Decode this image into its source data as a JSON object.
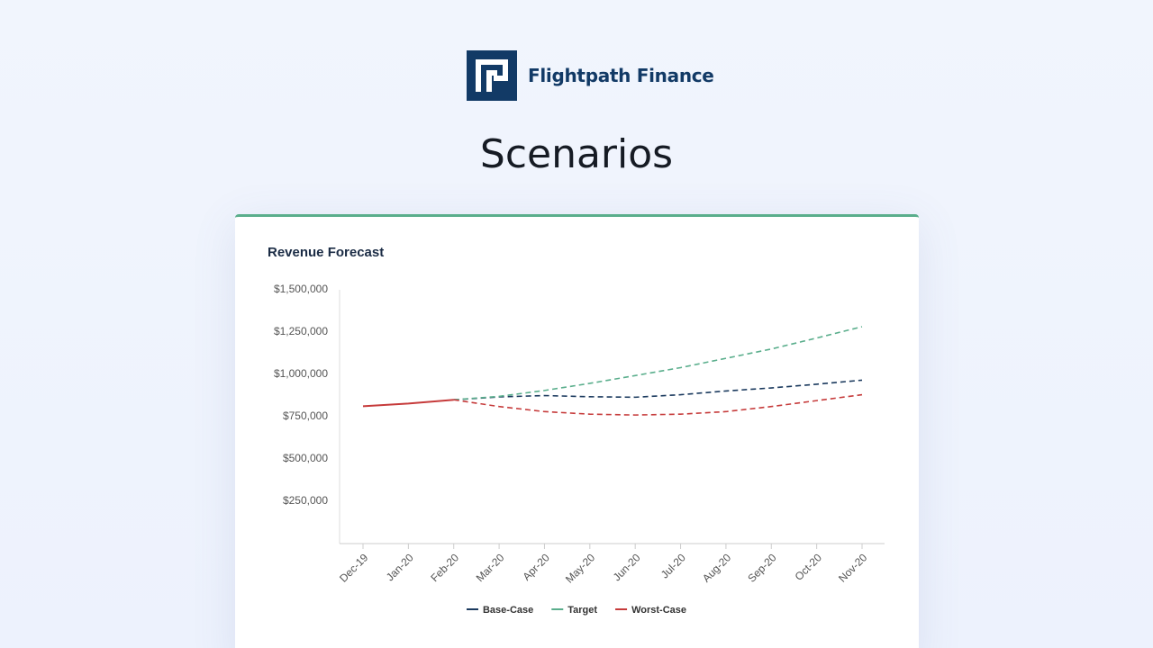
{
  "header": {
    "brand": "Flightpath Finance",
    "title": "Scenarios"
  },
  "chart_data": {
    "type": "line",
    "title": "Revenue Forecast",
    "categories": [
      "Dec-19",
      "Jan-20",
      "Feb-20",
      "Mar-20",
      "Apr-20",
      "May-20",
      "Jun-20",
      "Jul-20",
      "Aug-20",
      "Sep-20",
      "Oct-20",
      "Nov-20"
    ],
    "forecast_start": "Feb-20",
    "series": [
      {
        "name": "Base-Case",
        "color": "#1b3a5e",
        "values": [
          null,
          null,
          850000,
          867000,
          875000,
          868000,
          865000,
          880000,
          902000,
          920000,
          942000,
          966000
        ]
      },
      {
        "name": "Target",
        "color": "#5aae8c",
        "values": [
          null,
          null,
          850000,
          870000,
          905000,
          947000,
          993000,
          1040000,
          1095000,
          1150000,
          1215000,
          1282000
        ]
      },
      {
        "name": "Worst-Case",
        "color": "#c63b3b",
        "values": [
          812000,
          828000,
          850000,
          810000,
          780000,
          765000,
          760000,
          765000,
          780000,
          810000,
          845000,
          880000
        ]
      }
    ],
    "ylim": [
      0,
      1500000
    ],
    "yticks": [
      {
        "value": 250000,
        "label": "$250,000"
      },
      {
        "value": 500000,
        "label": "$500,000"
      },
      {
        "value": 750000,
        "label": "$750,000"
      },
      {
        "value": 1000000,
        "label": "$1,000,000"
      },
      {
        "value": 1250000,
        "label": "$1,250,000"
      },
      {
        "value": 1500000,
        "label": "$1,500,000"
      }
    ],
    "legend": "bottom"
  }
}
